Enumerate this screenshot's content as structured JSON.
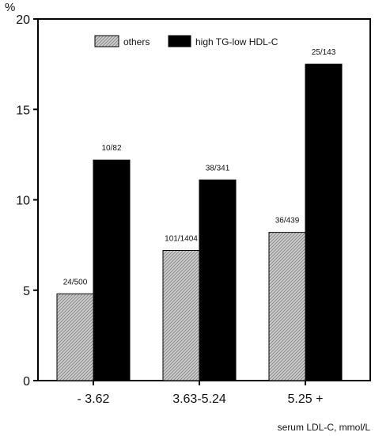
{
  "chart_data": {
    "type": "bar",
    "categories": [
      "- 3.62",
      "3.63-5.24",
      "5.25 +"
    ],
    "series": [
      {
        "name": "others",
        "values": [
          4.8,
          7.2,
          8.2
        ],
        "labels": [
          "24/500",
          "101/1404",
          "36/439"
        ],
        "pattern": "hatched-light-gray"
      },
      {
        "name": "high TG-low HDL-C",
        "values": [
          12.2,
          11.1,
          17.5
        ],
        "labels": [
          "10/82",
          "38/341",
          "25/143"
        ],
        "color": "#000000"
      }
    ],
    "ylabel": "%",
    "xlabel": "serum LDL-C, mmol/L",
    "ylim": [
      0,
      20
    ],
    "yticks": [
      0,
      5,
      10,
      15,
      20
    ],
    "grid": false,
    "legend_position": "top-center"
  }
}
